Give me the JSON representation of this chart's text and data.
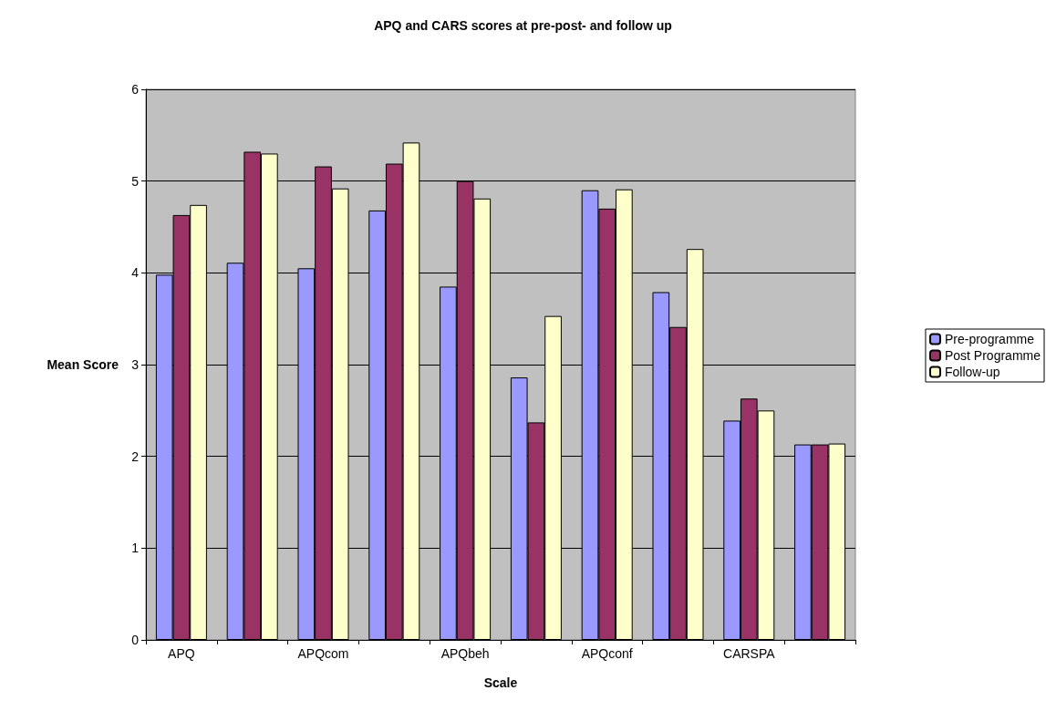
{
  "chart_data": {
    "type": "bar",
    "title": "APQ and CARS scores at pre-post- and follow up",
    "xlabel": "Scale",
    "ylabel": "Mean Score",
    "categories": [
      "APQ",
      null,
      "APQcom",
      null,
      "APQbeh",
      null,
      "APQconf",
      null,
      "CARSPA",
      null
    ],
    "series": [
      {
        "name": "Pre-programme",
        "color": "#9999ff",
        "values": [
          3.98,
          4.11,
          4.05,
          4.68,
          3.85,
          2.86,
          4.9,
          3.79,
          2.39,
          2.13
        ]
      },
      {
        "name": "Post Programme",
        "color": "#993366",
        "values": [
          4.63,
          5.32,
          5.16,
          5.19,
          5.0,
          2.37,
          4.7,
          3.41,
          2.63,
          2.13
        ]
      },
      {
        "name": "Follow-up",
        "color": "#ffffcc",
        "values": [
          4.74,
          5.3,
          4.92,
          5.42,
          4.81,
          3.53,
          4.91,
          4.26,
          2.5,
          2.14
        ]
      }
    ],
    "ylim": [
      0,
      6
    ],
    "yticks": [
      0,
      1,
      2,
      3,
      4,
      5,
      6
    ],
    "grid": "y",
    "legend": "right"
  }
}
